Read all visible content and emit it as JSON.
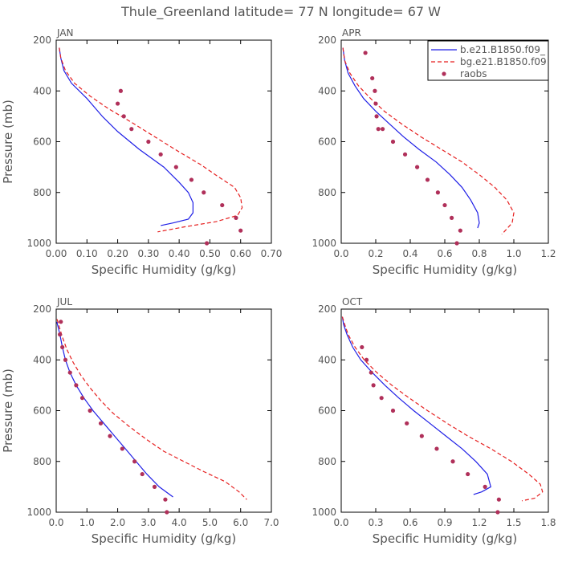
{
  "title": "Thule_Greenland  latitude= 77 N longitude= 67 W",
  "colors": {
    "model_b": "#1f1fe6",
    "model_bg": "#e61f1f",
    "raobs": "#b0305a",
    "text": "#555555"
  },
  "legend": {
    "entries": [
      {
        "label": "b.e21.B1850.f09_",
        "style": "solid",
        "color": "#1f1fe6"
      },
      {
        "label": "bg.e21.B1850.f09",
        "style": "dashed",
        "color": "#e61f1f"
      },
      {
        "label": "raobs",
        "style": "dots",
        "color": "#b0305a"
      }
    ]
  },
  "chart_data": [
    {
      "type": "line",
      "panel": "JAN",
      "xlabel": "Specific Humidity (g/kg)",
      "ylabel": "Pressure (mb)",
      "xlim": [
        0,
        0.7
      ],
      "ylim": [
        200,
        1000
      ],
      "y_inverted": true,
      "xticks": [
        0,
        0.1,
        0.2,
        0.3,
        0.4,
        0.5,
        0.6,
        0.7
      ],
      "xtick_labels": [
        "0.00",
        "0.10",
        "0.20",
        "0.30",
        "0.40",
        "0.50",
        "0.60",
        "0.70"
      ],
      "yticks": [
        200,
        400,
        600,
        800,
        1000
      ],
      "series": [
        {
          "name": "b.e21.B1850.f09_",
          "style": "solid",
          "x": [
            0.01,
            0.015,
            0.025,
            0.05,
            0.1,
            0.15,
            0.2,
            0.27,
            0.35,
            0.4,
            0.43,
            0.445,
            0.445,
            0.43,
            0.38,
            0.34
          ],
          "y": [
            230,
            270,
            320,
            370,
            430,
            500,
            560,
            630,
            700,
            760,
            800,
            840,
            880,
            905,
            920,
            930
          ]
        },
        {
          "name": "bg.e21.B1850.f09",
          "style": "dashed",
          "x": [
            0.01,
            0.015,
            0.03,
            0.06,
            0.11,
            0.17,
            0.24,
            0.32,
            0.4,
            0.47,
            0.53,
            0.58,
            0.6,
            0.605,
            0.59,
            0.52,
            0.42,
            0.33
          ],
          "y": [
            230,
            270,
            320,
            370,
            420,
            470,
            520,
            580,
            640,
            690,
            740,
            780,
            820,
            860,
            890,
            915,
            935,
            955
          ]
        },
        {
          "name": "raobs",
          "style": "dots",
          "x": [
            0.21,
            0.2,
            0.22,
            0.245,
            0.3,
            0.34,
            0.39,
            0.44,
            0.48,
            0.54,
            0.585,
            0.6,
            0.49
          ],
          "y": [
            400,
            450,
            500,
            550,
            600,
            650,
            700,
            750,
            800,
            850,
            900,
            950,
            1000
          ]
        }
      ]
    },
    {
      "type": "line",
      "panel": "APR",
      "xlabel": "Specific Humidity (g/kg)",
      "ylabel": "",
      "xlim": [
        0,
        1.2
      ],
      "ylim": [
        200,
        1000
      ],
      "y_inverted": true,
      "xticks": [
        0,
        0.2,
        0.4,
        0.6,
        0.8,
        1.0,
        1.2
      ],
      "xtick_labels": [
        "0.0",
        "0.2",
        "0.4",
        "0.6",
        "0.8",
        "1.0",
        "1.2"
      ],
      "yticks": [
        200,
        400,
        600,
        800,
        1000
      ],
      "series": [
        {
          "name": "b.e21.B1850.f09_",
          "style": "solid",
          "x": [
            0.01,
            0.02,
            0.04,
            0.08,
            0.13,
            0.2,
            0.28,
            0.36,
            0.45,
            0.55,
            0.63,
            0.7,
            0.75,
            0.79,
            0.8,
            0.79
          ],
          "y": [
            230,
            280,
            330,
            380,
            430,
            480,
            530,
            580,
            630,
            680,
            730,
            780,
            830,
            880,
            920,
            940
          ]
        },
        {
          "name": "bg.e21.B1850.f09",
          "style": "dashed",
          "x": [
            0.01,
            0.02,
            0.05,
            0.1,
            0.17,
            0.25,
            0.35,
            0.46,
            0.58,
            0.7,
            0.8,
            0.89,
            0.96,
            1.0,
            0.99,
            0.95,
            0.93
          ],
          "y": [
            230,
            280,
            330,
            380,
            430,
            480,
            530,
            580,
            630,
            680,
            730,
            780,
            830,
            880,
            920,
            950,
            965
          ]
        },
        {
          "name": "raobs",
          "style": "dots",
          "x": [
            0.14,
            0.18,
            0.195,
            0.2,
            0.205,
            0.215,
            0.24,
            0.3,
            0.37,
            0.44,
            0.5,
            0.56,
            0.6,
            0.64,
            0.69,
            0.67
          ],
          "y": [
            250,
            350,
            400,
            450,
            500,
            550,
            550,
            600,
            650,
            700,
            750,
            800,
            850,
            900,
            950,
            1000
          ]
        }
      ]
    },
    {
      "type": "line",
      "panel": "JUL",
      "xlabel": "Specific Humidity (g/kg)",
      "ylabel": "Pressure (mb)",
      "xlim": [
        0,
        7.0
      ],
      "ylim": [
        200,
        1000
      ],
      "y_inverted": true,
      "xticks": [
        0,
        1,
        2,
        3,
        4,
        5,
        6,
        7
      ],
      "xtick_labels": [
        "0.0",
        "1.0",
        "2.0",
        "3.0",
        "4.0",
        "5.0",
        "6.0",
        "7.0"
      ],
      "yticks": [
        200,
        400,
        600,
        800,
        1000
      ],
      "series": [
        {
          "name": "b.e21.B1850.f09_",
          "style": "solid",
          "x": [
            0.02,
            0.06,
            0.12,
            0.2,
            0.3,
            0.45,
            0.65,
            0.9,
            1.2,
            1.55,
            1.9,
            2.25,
            2.6,
            2.95,
            3.35,
            3.8
          ],
          "y": [
            250,
            270,
            300,
            350,
            400,
            450,
            500,
            550,
            600,
            650,
            700,
            750,
            800,
            850,
            900,
            940
          ]
        },
        {
          "name": "bg.e21.B1850.f09",
          "style": "dashed",
          "x": [
            0.03,
            0.1,
            0.2,
            0.35,
            0.55,
            0.8,
            1.1,
            1.45,
            1.85,
            2.35,
            2.9,
            3.5,
            4.15,
            4.8,
            5.5,
            5.95,
            6.2
          ],
          "y": [
            240,
            270,
            310,
            360,
            410,
            460,
            510,
            560,
            610,
            660,
            710,
            760,
            800,
            840,
            880,
            920,
            950
          ]
        },
        {
          "name": "raobs",
          "style": "dots",
          "x": [
            0.15,
            0.12,
            0.2,
            0.3,
            0.45,
            0.65,
            0.85,
            1.1,
            1.45,
            1.75,
            2.15,
            2.55,
            2.8,
            3.2,
            3.55,
            3.6
          ],
          "y": [
            250,
            300,
            350,
            400,
            450,
            500,
            550,
            600,
            650,
            700,
            750,
            800,
            850,
            900,
            950,
            1000
          ]
        }
      ]
    },
    {
      "type": "line",
      "panel": "OCT",
      "xlabel": "Specific Humidity (g/kg)",
      "ylabel": "",
      "xlim": [
        0,
        1.8
      ],
      "ylim": [
        200,
        1000
      ],
      "y_inverted": true,
      "xticks": [
        0,
        0.3,
        0.6,
        0.9,
        1.2,
        1.5,
        1.8
      ],
      "xtick_labels": [
        "0.0",
        "0.3",
        "0.6",
        "0.9",
        "1.2",
        "1.5",
        "1.8"
      ],
      "yticks": [
        200,
        400,
        600,
        800,
        1000
      ],
      "series": [
        {
          "name": "b.e21.B1850.f09_",
          "style": "solid",
          "x": [
            0.01,
            0.02,
            0.05,
            0.1,
            0.17,
            0.27,
            0.38,
            0.5,
            0.63,
            0.77,
            0.91,
            1.05,
            1.17,
            1.27,
            1.3,
            1.22,
            1.15
          ],
          "y": [
            230,
            260,
            300,
            350,
            400,
            450,
            500,
            550,
            600,
            650,
            700,
            750,
            800,
            850,
            900,
            920,
            930
          ]
        },
        {
          "name": "bg.e21.B1850.f09",
          "style": "dashed",
          "x": [
            0.01,
            0.03,
            0.06,
            0.12,
            0.2,
            0.31,
            0.44,
            0.59,
            0.75,
            0.92,
            1.1,
            1.3,
            1.48,
            1.63,
            1.73,
            1.75,
            1.68,
            1.57
          ],
          "y": [
            230,
            260,
            300,
            350,
            400,
            450,
            500,
            550,
            600,
            650,
            700,
            750,
            800,
            850,
            890,
            920,
            945,
            955
          ]
        },
        {
          "name": "raobs",
          "style": "dots",
          "x": [
            0.18,
            0.22,
            0.26,
            0.28,
            0.35,
            0.45,
            0.57,
            0.7,
            0.83,
            0.97,
            1.1,
            1.25,
            1.37,
            1.36
          ],
          "y": [
            350,
            400,
            450,
            500,
            550,
            600,
            650,
            700,
            750,
            800,
            850,
            900,
            950,
            1000
          ]
        }
      ]
    }
  ]
}
